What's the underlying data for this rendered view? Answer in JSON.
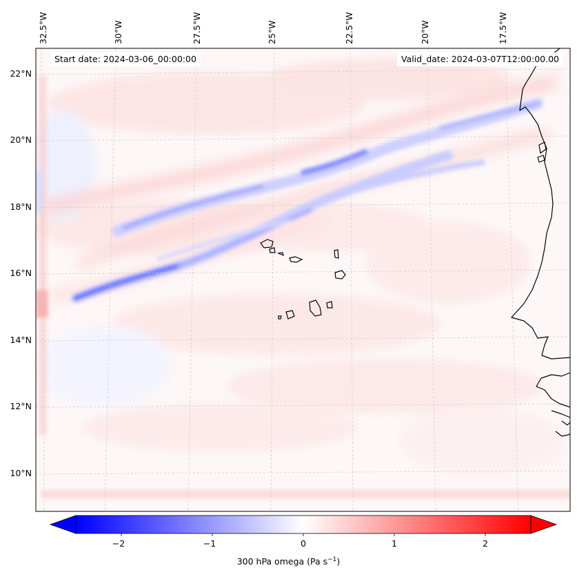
{
  "header": {
    "start_date_label": "Start date: 2024-03-06_00:00:00",
    "valid_date_label": "Valid_date: 2024-03-07T12:00:00.00"
  },
  "map": {
    "longitude_labels": [
      "32.5°W",
      "30°W",
      "27.5°W",
      "25°W",
      "22.5°W",
      "20°W",
      "17.5°W"
    ],
    "latitude_labels": [
      "22°N",
      "20°N",
      "18°N",
      "16°N",
      "14°N",
      "12°N",
      "10°N"
    ],
    "coastline_color": "#000000",
    "gridline_color": "#c8c8c8"
  },
  "colorbar": {
    "label_text": "300 hPa omega (Pa s",
    "label_sup": "−1",
    "label_close": ")",
    "ticks": [
      "−2",
      "−1",
      "0",
      "1",
      "2"
    ],
    "vmin": -2.5,
    "vmax": 2.5,
    "low_color": "#0000ff",
    "mid_color": "#ffffff",
    "high_color": "#ff0000"
  }
}
